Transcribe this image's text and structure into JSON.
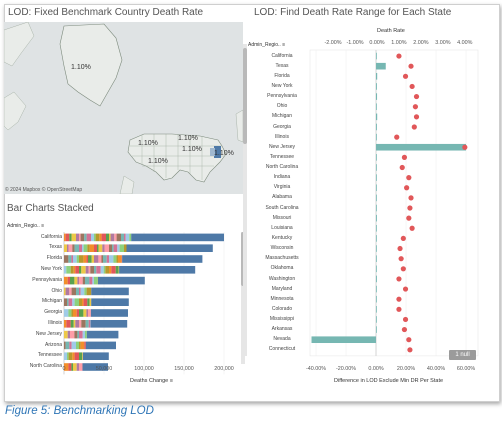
{
  "map_panel": {
    "title": "LOD: Fixed Benchmark Country Death Rate",
    "copyright": "© 2024 Mapbox © OpenStreetMap",
    "labels": [
      "1.10%",
      "1.10%",
      "1.10%",
      "1.10%",
      "1.10%",
      "1.10%"
    ]
  },
  "bar_panel": {
    "title": "Bar Charts Stacked",
    "column_header": "Admin_Regio..",
    "axis_title": "Deaths Change",
    "sort_icon": "sort-icon"
  },
  "range_panel": {
    "title": "LOD: Find Death Rate Range for Each State",
    "top_axis_title": "Death Rate",
    "column_header": "Admin_Regio..",
    "bottom_axis_title": "Difference in LOD Exclude Min DR Per State",
    "null_badge": "1 null"
  },
  "figure_caption": "Figure 5: Benchmarking LOD",
  "colors": {
    "bar": "#4e79a7",
    "range_bar": "#76b7b2",
    "dot": "#e15759",
    "map_selected": "#4e79a7"
  },
  "chart_data": [
    {
      "type": "bar",
      "title": "Bar Charts Stacked",
      "xlabel": "Deaths Change",
      "ylabel": "Admin_Regio..",
      "xlim": [
        0,
        215000
      ],
      "xticks": [
        "0",
        "50,000",
        "100,000",
        "150,000",
        "200,000"
      ],
      "xtick_values": [
        0,
        50000,
        100000,
        150000,
        200000
      ],
      "categories": [
        "California",
        "Texas",
        "Florida",
        "New York",
        "Pennsylvania",
        "Ohio",
        "Michigan",
        "Georgia",
        "Illinois",
        "New Jersey",
        "Arizona",
        "Tennessee",
        "North Carolina"
      ],
      "values": [
        200000,
        186000,
        173000,
        164000,
        101000,
        81000,
        81000,
        80000,
        79000,
        68000,
        65000,
        56000,
        55000
      ]
    },
    {
      "type": "scatter",
      "title": "LOD: Find Death Rate Range for Each State",
      "categories": [
        "California",
        "Texas",
        "Florida",
        "New York",
        "Pennsylvania",
        "Ohio",
        "Michigan",
        "Georgia",
        "Illinois",
        "New Jersey",
        "Tennessee",
        "North Carolina",
        "Indiana",
        "Virginia",
        "Alabama",
        "South Carolina",
        "Missouri",
        "Louisiana",
        "Kentucky",
        "Wisconsin",
        "Massachusetts",
        "Oklahoma",
        "Washington",
        "Maryland",
        "Minnesota",
        "Colorado",
        "Mississippi",
        "Arkansas",
        "Nevada",
        "Connecticut"
      ],
      "top_axis": {
        "title": "Death Rate",
        "ticks": [
          "-2.00%",
          "-1.00%",
          "0.00%",
          "1.00%",
          "2.00%",
          "3.00%",
          "4.00%"
        ],
        "tick_values": [
          -2,
          -1,
          0,
          1,
          2,
          3,
          4
        ],
        "xlim": [
          -3.05,
          4.6
        ]
      },
      "bottom_axis": {
        "title": "Difference in LOD Exclude Min DR Per State",
        "ticks": [
          "-40.00%",
          "-20.00%",
          "0.00%",
          "20.00%",
          "40.00%",
          "60.00%"
        ],
        "tick_values": [
          -40,
          -20,
          0,
          20,
          40,
          60
        ],
        "xlim": [
          -44,
          68
        ]
      },
      "series": [
        {
          "name": "Difference in LOD Exclude Min DR Per State",
          "values": [
            0,
            6.5,
            0.8,
            0.6,
            0.7,
            0.5,
            0.8,
            0.6,
            0.4,
            60,
            0.5,
            0.4,
            0.4,
            0.3,
            0.5,
            0.4,
            0.6,
            0.4,
            0.4,
            0.5,
            0.4,
            0.5,
            0.6,
            0.3,
            0.4,
            0.3,
            0.5,
            0.4,
            -43,
            null
          ]
        },
        {
          "name": "Death Rate",
          "values": [
            1.0,
            1.55,
            1.3,
            1.6,
            1.8,
            1.75,
            1.8,
            1.7,
            0.9,
            4.0,
            1.25,
            1.15,
            1.45,
            1.35,
            1.55,
            1.5,
            1.45,
            1.6,
            1.2,
            1.05,
            1.1,
            1.2,
            1.0,
            1.3,
            1.0,
            1.0,
            1.3,
            1.25,
            1.45,
            1.5
          ]
        }
      ]
    }
  ]
}
